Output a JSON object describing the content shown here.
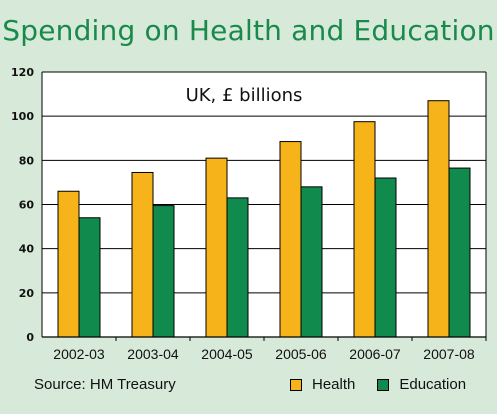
{
  "header": {
    "title": "Spending on Health and Education"
  },
  "footer": {
    "source": "Source: HM Treasury"
  },
  "colors": {
    "health": "#f6b41a",
    "education": "#118a4d",
    "background": "#d7ead9",
    "title": "#1a8a4a"
  },
  "chart_data": {
    "type": "bar",
    "title": "Spending on Health and Education",
    "subtitle": "UK, £ billions",
    "xlabel": "",
    "ylabel": "",
    "categories": [
      "2002-03",
      "2003-04",
      "2004-05",
      "2005-06",
      "2006-07",
      "2007-08"
    ],
    "series": [
      {
        "name": "Health",
        "values": [
          66,
          74.5,
          81,
          88.5,
          97.5,
          107
        ]
      },
      {
        "name": "Education",
        "values": [
          54,
          59.5,
          63,
          68,
          72,
          76.5
        ]
      }
    ],
    "ylim": [
      0,
      120
    ],
    "yticks": [
      0,
      20,
      40,
      60,
      80,
      100,
      120
    ],
    "grid": true,
    "legend": "bottom-right"
  }
}
